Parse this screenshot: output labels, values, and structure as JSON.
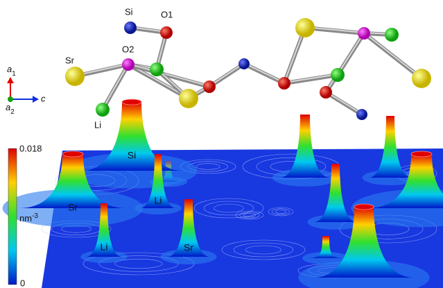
{
  "structure_labels": [
    "Si",
    "O1",
    "Sr",
    "O2",
    "Li"
  ],
  "axes": {
    "vertical": [
      "a",
      "1"
    ],
    "depth": [
      "a",
      "2"
    ],
    "horizontal": "c"
  },
  "colorbar": {
    "max": "0.018",
    "min": "0",
    "unit": "nm",
    "unit_exponent": "-3"
  },
  "peak_labels": [
    "Si",
    "Sr",
    "Li",
    "Li",
    "Sr"
  ]
}
